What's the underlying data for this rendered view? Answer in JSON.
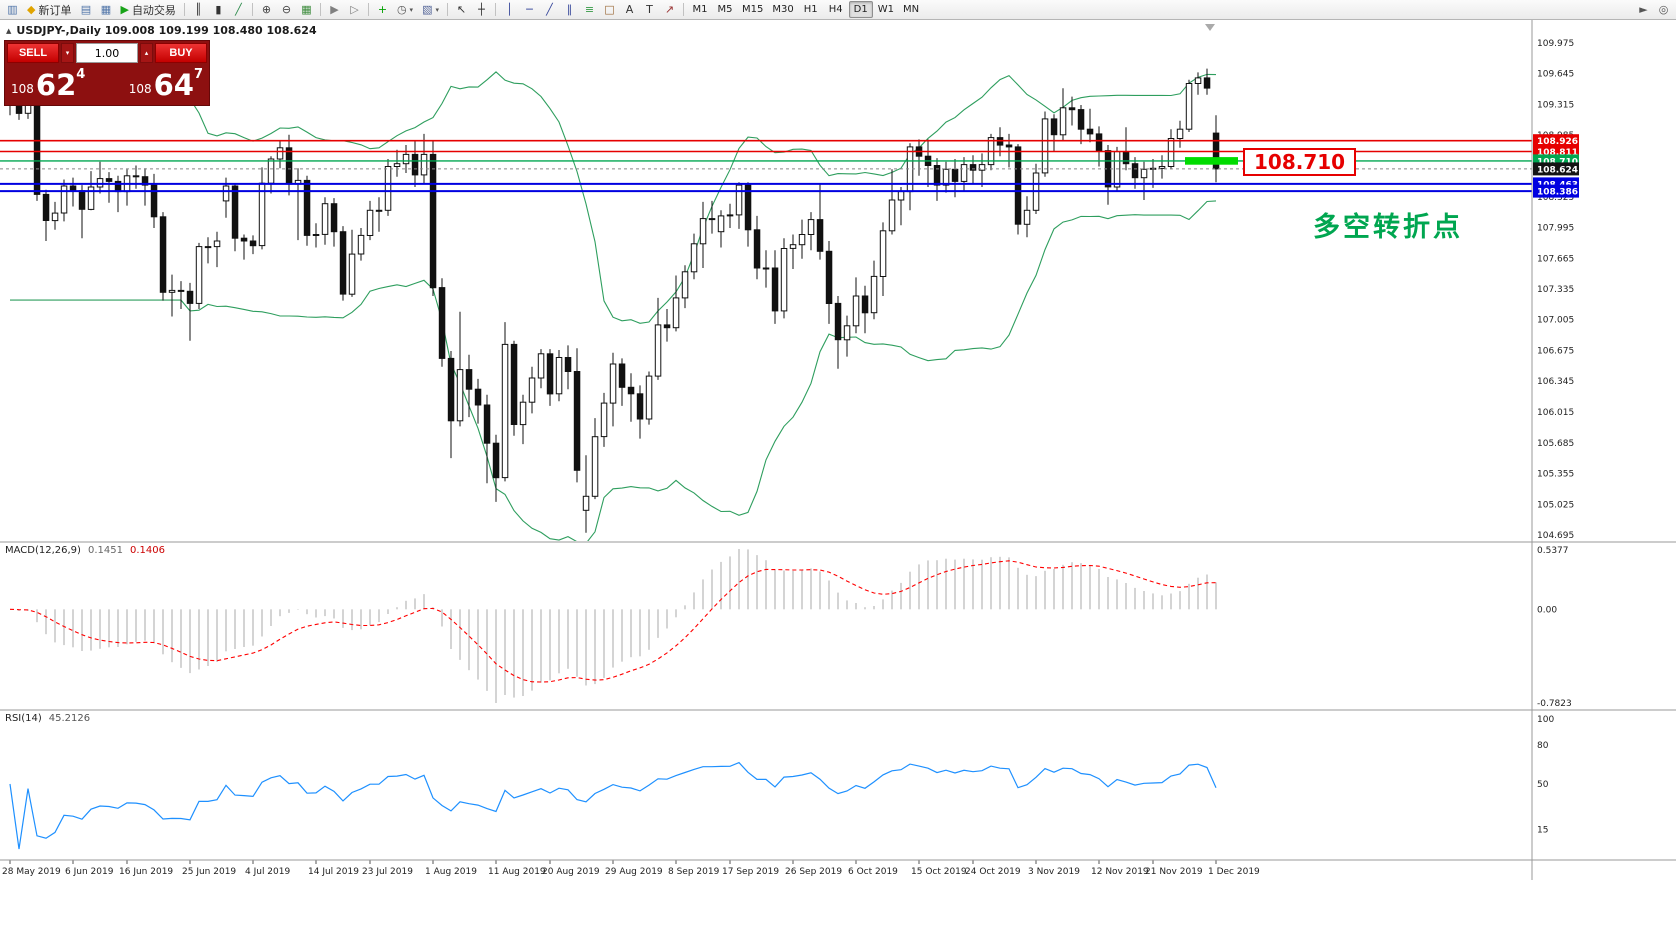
{
  "chart_header": {
    "symbol_line": "USDJPY-,Daily  109.008 109.199 108.480 108.624"
  },
  "trade_panel": {
    "sell_label": "SELL",
    "buy_label": "BUY",
    "volume": "1.00",
    "sell_price": {
      "prefix": "108",
      "big": "62",
      "sup": "4"
    },
    "buy_price": {
      "prefix": "108",
      "big": "64",
      "sup": "7"
    }
  },
  "annotations": {
    "level_callout": "108.710",
    "cn_note": "多空转折点"
  },
  "indicators": {
    "macd_label": "MACD(12,26,9)",
    "macd_v1": "0.1451",
    "macd_v2": "0.1406",
    "rsi_label": "RSI(14)",
    "rsi_value": "45.2126"
  },
  "toolbar": {
    "buttons": [
      {
        "name": "charts",
        "icon": "chart-window-icon"
      },
      {
        "name": "new-order",
        "icon": "new-order-icon",
        "label": "新订单"
      },
      {
        "name": "market-watch",
        "icon": "market-watch-icon"
      },
      {
        "name": "navigator",
        "icon": "navigator-icon"
      },
      {
        "name": "auto-trading",
        "icon": "autotrade-play-icon",
        "label": "自动交易"
      },
      {
        "sep": true
      },
      {
        "name": "bar-chart",
        "icon": "bar-chart-icon"
      },
      {
        "name": "candlestick-chart",
        "icon": "candlestick-chart-icon"
      },
      {
        "name": "line-chart",
        "icon": "line-chart-icon"
      },
      {
        "sep": true
      },
      {
        "name": "zoom-in",
        "icon": "zoom-in-icon"
      },
      {
        "name": "zoom-out",
        "icon": "zoom-out-icon"
      },
      {
        "name": "tile-windows",
        "icon": "tile-windows-icon"
      },
      {
        "sep": true
      },
      {
        "name": "auto-scroll",
        "icon": "auto-scroll-icon"
      },
      {
        "name": "chart-shift",
        "icon": "chart-shift-icon"
      },
      {
        "sep": true
      },
      {
        "name": "indicators",
        "icon": "indicators-add-icon"
      },
      {
        "name": "periods",
        "icon": "periods-icon",
        "caret": true
      },
      {
        "name": "templates",
        "icon": "templates-icon",
        "caret": true
      },
      {
        "sep": true
      },
      {
        "name": "cursor",
        "icon": "cursor-icon"
      },
      {
        "name": "crosshair",
        "icon": "crosshair-icon"
      },
      {
        "sep": true
      },
      {
        "name": "vertical-line",
        "icon": "vertical-line-icon"
      },
      {
        "name": "horizontal-line",
        "icon": "horizontal-line-icon"
      },
      {
        "name": "trendline",
        "icon": "trendline-icon"
      },
      {
        "name": "channel",
        "icon": "channel-icon"
      },
      {
        "name": "fibonacci",
        "icon": "fibonacci-icon"
      },
      {
        "name": "shapes",
        "icon": "shapes-icon"
      },
      {
        "name": "text",
        "icon": "text-icon"
      },
      {
        "name": "text-label",
        "icon": "text-label-icon"
      },
      {
        "name": "arrows",
        "icon": "arrows-icon"
      }
    ],
    "timeframes": [
      "M1",
      "M5",
      "M15",
      "M30",
      "H1",
      "H4",
      "D1",
      "W1",
      "MN"
    ],
    "active_timeframe": "D1",
    "right_buttons": [
      {
        "name": "pointer-tool",
        "icon": "pointer-icon"
      },
      {
        "name": "search",
        "icon": "search-icon"
      }
    ]
  },
  "chart_data": {
    "type": "candlestick",
    "symbol": "USDJPY-",
    "timeframe": "Daily",
    "ohlc_current": {
      "open": 109.008,
      "high": 109.199,
      "low": 108.48,
      "close": 108.624
    },
    "price_axis": {
      "max": 109.975,
      "min": 104.695,
      "step": 0.33
    },
    "x_labels": [
      "28 May 2019",
      "6 Jun 2019",
      "16 Jun 2019",
      "25 Jun 2019",
      "4 Jul 2019",
      "14 Jul 2019",
      "23 Jul 2019",
      "1 Aug 2019",
      "11 Aug 2019",
      "20 Aug 2019",
      "29 Aug 2019",
      "8 Sep 2019",
      "17 Sep 2019",
      "26 Sep 2019",
      "6 Oct 2019",
      "15 Oct 2019",
      "24 Oct 2019",
      "3 Nov 2019",
      "12 Nov 2019",
      "21 Nov 2019",
      "1 Dec 2019"
    ],
    "levels": [
      {
        "value": 108.926,
        "label": "108.926",
        "line_color": "#e60000",
        "box_color": "#e60000",
        "width": 1.6
      },
      {
        "value": 108.811,
        "label": "108.811",
        "line_color": "#e60000",
        "box_color": "#e60000",
        "width": 1.6
      },
      {
        "value": 108.71,
        "label": "108.710",
        "line_color": "#00a650",
        "box_color": "#00a650",
        "width": 1.4
      },
      {
        "value": 108.624,
        "label": "108.624",
        "line_color": "#888888",
        "box_color": "#141414",
        "width": 1,
        "dashed": true
      },
      {
        "value": 108.463,
        "label": "108.463",
        "line_color": "#0000e0",
        "box_color": "#0000e0",
        "width": 2
      },
      {
        "value": 108.386,
        "label": "108.386",
        "line_color": "#0000e0",
        "box_color": "#0000e0",
        "width": 2
      }
    ],
    "highlight": {
      "price": 108.71,
      "color": "#00dc00"
    },
    "bollinger": {
      "period": 20,
      "deviation": 2,
      "color": "#2e9e5e"
    },
    "macd": {
      "params": [
        12,
        26,
        9
      ],
      "value_main": 0.1451,
      "value_signal": 0.1406,
      "axis": {
        "max": "0.5377",
        "zero": "0.00",
        "min": "-0.7823"
      },
      "histogram_color": "#b8b8b8",
      "signal_color": "#ff0000"
    },
    "rsi": {
      "period": 14,
      "value": 45.2126,
      "axis_labels": [
        "100",
        "80",
        "50",
        "15"
      ],
      "color": "#1e90ff"
    },
    "candles": [
      [
        109.5,
        109.54,
        109.2,
        109.37
      ],
      [
        109.37,
        109.44,
        109.15,
        109.22
      ],
      [
        109.22,
        109.38,
        109.16,
        109.35
      ],
      [
        109.35,
        109.39,
        108.28,
        108.35
      ],
      [
        108.35,
        108.4,
        107.85,
        108.07
      ],
      [
        108.07,
        108.27,
        107.97,
        108.15
      ],
      [
        108.15,
        108.51,
        108.06,
        108.44
      ],
      [
        108.44,
        108.53,
        108.22,
        108.39
      ],
      [
        108.39,
        108.45,
        107.88,
        108.19
      ],
      [
        108.19,
        108.6,
        108.18,
        108.43
      ],
      [
        108.43,
        108.7,
        108.36,
        108.52
      ],
      [
        108.52,
        108.59,
        108.26,
        108.49
      ],
      [
        108.49,
        108.55,
        108.16,
        108.38
      ],
      [
        108.38,
        108.62,
        108.23,
        108.55
      ],
      [
        108.55,
        108.66,
        108.41,
        108.54
      ],
      [
        108.54,
        108.63,
        108.23,
        108.45
      ],
      [
        108.45,
        108.57,
        107.99,
        108.11
      ],
      [
        108.11,
        108.16,
        107.21,
        107.3
      ],
      [
        107.3,
        107.49,
        107.04,
        107.32
      ],
      [
        107.32,
        107.42,
        107.12,
        107.31
      ],
      [
        107.31,
        107.4,
        106.78,
        107.18
      ],
      [
        107.18,
        107.83,
        107.12,
        107.79
      ],
      [
        107.79,
        107.89,
        107.61,
        107.79
      ],
      [
        107.79,
        107.95,
        107.57,
        107.85
      ],
      [
        108.28,
        108.53,
        108.1,
        108.44
      ],
      [
        108.44,
        108.47,
        107.74,
        107.88
      ],
      [
        107.88,
        107.92,
        107.65,
        107.85
      ],
      [
        107.85,
        107.91,
        107.71,
        107.8
      ],
      [
        107.8,
        108.64,
        107.76,
        108.47
      ],
      [
        108.47,
        108.76,
        108.36,
        108.73
      ],
      [
        108.73,
        108.93,
        108.63,
        108.85
      ],
      [
        108.85,
        108.99,
        108.34,
        108.46
      ],
      [
        108.46,
        108.63,
        107.86,
        108.5
      ],
      [
        108.5,
        108.55,
        107.8,
        107.91
      ],
      [
        107.91,
        108.04,
        107.78,
        107.92
      ],
      [
        107.92,
        108.32,
        107.81,
        108.25
      ],
      [
        108.25,
        108.31,
        107.79,
        107.95
      ],
      [
        107.95,
        108.01,
        107.21,
        107.28
      ],
      [
        107.28,
        107.97,
        107.25,
        107.71
      ],
      [
        107.71,
        107.99,
        107.64,
        107.91
      ],
      [
        107.91,
        108.28,
        107.86,
        108.18
      ],
      [
        108.18,
        108.32,
        107.95,
        108.18
      ],
      [
        108.18,
        108.73,
        108.12,
        108.65
      ],
      [
        108.65,
        108.83,
        108.54,
        108.68
      ],
      [
        108.68,
        108.88,
        108.58,
        108.78
      ],
      [
        108.78,
        108.92,
        108.43,
        108.56
      ],
      [
        108.56,
        109.0,
        108.47,
        108.78
      ],
      [
        108.78,
        108.92,
        107.26,
        107.35
      ],
      [
        107.35,
        107.45,
        106.5,
        106.59
      ],
      [
        106.59,
        106.67,
        105.52,
        105.92
      ],
      [
        105.92,
        107.09,
        105.86,
        106.47
      ],
      [
        106.47,
        106.63,
        105.96,
        106.26
      ],
      [
        106.26,
        106.37,
        105.89,
        106.09
      ],
      [
        106.09,
        106.2,
        105.25,
        105.68
      ],
      [
        105.68,
        105.77,
        105.05,
        105.31
      ],
      [
        105.31,
        106.98,
        105.27,
        106.74
      ],
      [
        106.74,
        106.78,
        105.76,
        105.88
      ],
      [
        105.88,
        106.2,
        105.67,
        106.12
      ],
      [
        106.12,
        106.5,
        106.0,
        106.38
      ],
      [
        106.38,
        106.69,
        106.27,
        106.64
      ],
      [
        106.64,
        106.69,
        106.08,
        106.21
      ],
      [
        106.21,
        106.68,
        106.13,
        106.6
      ],
      [
        106.6,
        106.73,
        106.26,
        106.45
      ],
      [
        106.45,
        106.7,
        105.26,
        105.39
      ],
      [
        104.96,
        105.55,
        104.72,
        105.11
      ],
      [
        105.11,
        105.95,
        105.08,
        105.75
      ],
      [
        105.75,
        106.22,
        105.64,
        106.11
      ],
      [
        106.11,
        106.65,
        105.86,
        106.53
      ],
      [
        106.53,
        106.59,
        106.08,
        106.28
      ],
      [
        106.28,
        106.43,
        105.91,
        106.21
      ],
      [
        106.21,
        106.3,
        105.73,
        105.94
      ],
      [
        105.94,
        106.45,
        105.88,
        106.4
      ],
      [
        106.4,
        107.24,
        106.36,
        106.95
      ],
      [
        106.95,
        107.12,
        106.77,
        106.92
      ],
      [
        106.92,
        107.48,
        106.88,
        107.24
      ],
      [
        107.24,
        107.59,
        107.13,
        107.52
      ],
      [
        107.52,
        107.93,
        107.44,
        107.82
      ],
      [
        107.82,
        108.27,
        107.56,
        108.09
      ],
      [
        108.09,
        108.28,
        107.93,
        108.09
      ],
      [
        107.95,
        108.18,
        107.78,
        108.12
      ],
      [
        108.12,
        108.25,
        107.99,
        108.13
      ],
      [
        108.13,
        108.48,
        107.98,
        108.45
      ],
      [
        108.45,
        108.48,
        107.79,
        107.97
      ],
      [
        107.97,
        108.12,
        107.44,
        107.56
      ],
      [
        107.56,
        107.75,
        107.35,
        107.56
      ],
      [
        107.56,
        107.75,
        106.96,
        107.1
      ],
      [
        107.1,
        107.88,
        107.02,
        107.77
      ],
      [
        107.77,
        107.92,
        107.55,
        107.81
      ],
      [
        107.81,
        108.08,
        107.66,
        107.92
      ],
      [
        107.92,
        108.16,
        107.75,
        108.08
      ],
      [
        108.08,
        108.47,
        107.65,
        107.74
      ],
      [
        107.74,
        107.85,
        106.96,
        107.18
      ],
      [
        107.18,
        107.26,
        106.48,
        106.79
      ],
      [
        106.79,
        107.05,
        106.61,
        106.94
      ],
      [
        106.94,
        107.46,
        106.86,
        107.26
      ],
      [
        107.26,
        107.37,
        106.86,
        107.08
      ],
      [
        107.08,
        107.64,
        107.01,
        107.47
      ],
      [
        107.47,
        108.05,
        107.26,
        107.96
      ],
      [
        107.96,
        108.62,
        107.92,
        108.29
      ],
      [
        108.29,
        108.43,
        108.02,
        108.38
      ],
      [
        108.38,
        108.9,
        108.18,
        108.86
      ],
      [
        108.86,
        108.94,
        108.55,
        108.76
      ],
      [
        108.76,
        108.94,
        108.43,
        108.66
      ],
      [
        108.66,
        108.74,
        108.28,
        108.45
      ],
      [
        108.45,
        108.7,
        108.37,
        108.62
      ],
      [
        108.62,
        108.73,
        108.32,
        108.49
      ],
      [
        108.49,
        108.75,
        108.38,
        108.67
      ],
      [
        108.67,
        108.77,
        108.47,
        108.61
      ],
      [
        108.61,
        108.79,
        108.43,
        108.67
      ],
      [
        108.67,
        109.0,
        108.61,
        108.96
      ],
      [
        108.96,
        109.07,
        108.76,
        108.88
      ],
      [
        108.88,
        109.0,
        108.64,
        108.86
      ],
      [
        108.86,
        108.89,
        107.92,
        108.03
      ],
      [
        108.03,
        108.33,
        107.89,
        108.18
      ],
      [
        108.18,
        108.68,
        108.14,
        108.58
      ],
      [
        108.58,
        109.24,
        108.54,
        109.16
      ],
      [
        109.16,
        109.21,
        108.81,
        108.99
      ],
      [
        108.99,
        109.49,
        108.93,
        109.28
      ],
      [
        109.28,
        109.4,
        109.09,
        109.26
      ],
      [
        109.26,
        109.31,
        108.89,
        109.05
      ],
      [
        109.05,
        109.27,
        108.91,
        109.0
      ],
      [
        109.0,
        109.08,
        108.65,
        108.82
      ],
      [
        108.82,
        108.88,
        108.24,
        108.43
      ],
      [
        108.43,
        108.86,
        108.38,
        108.81
      ],
      [
        108.81,
        109.07,
        108.61,
        108.68
      ],
      [
        108.68,
        108.75,
        108.41,
        108.53
      ],
      [
        108.53,
        108.7,
        108.29,
        108.62
      ],
      [
        108.62,
        108.73,
        108.42,
        108.63
      ],
      [
        108.63,
        108.77,
        108.52,
        108.65
      ],
      [
        108.65,
        109.05,
        108.62,
        108.95
      ],
      [
        108.95,
        109.14,
        108.85,
        109.05
      ],
      [
        109.05,
        109.58,
        109.02,
        109.54
      ],
      [
        109.54,
        109.66,
        109.42,
        109.6
      ],
      [
        109.6,
        109.7,
        109.42,
        109.49
      ],
      [
        109.008,
        109.199,
        108.48,
        108.624
      ]
    ]
  }
}
